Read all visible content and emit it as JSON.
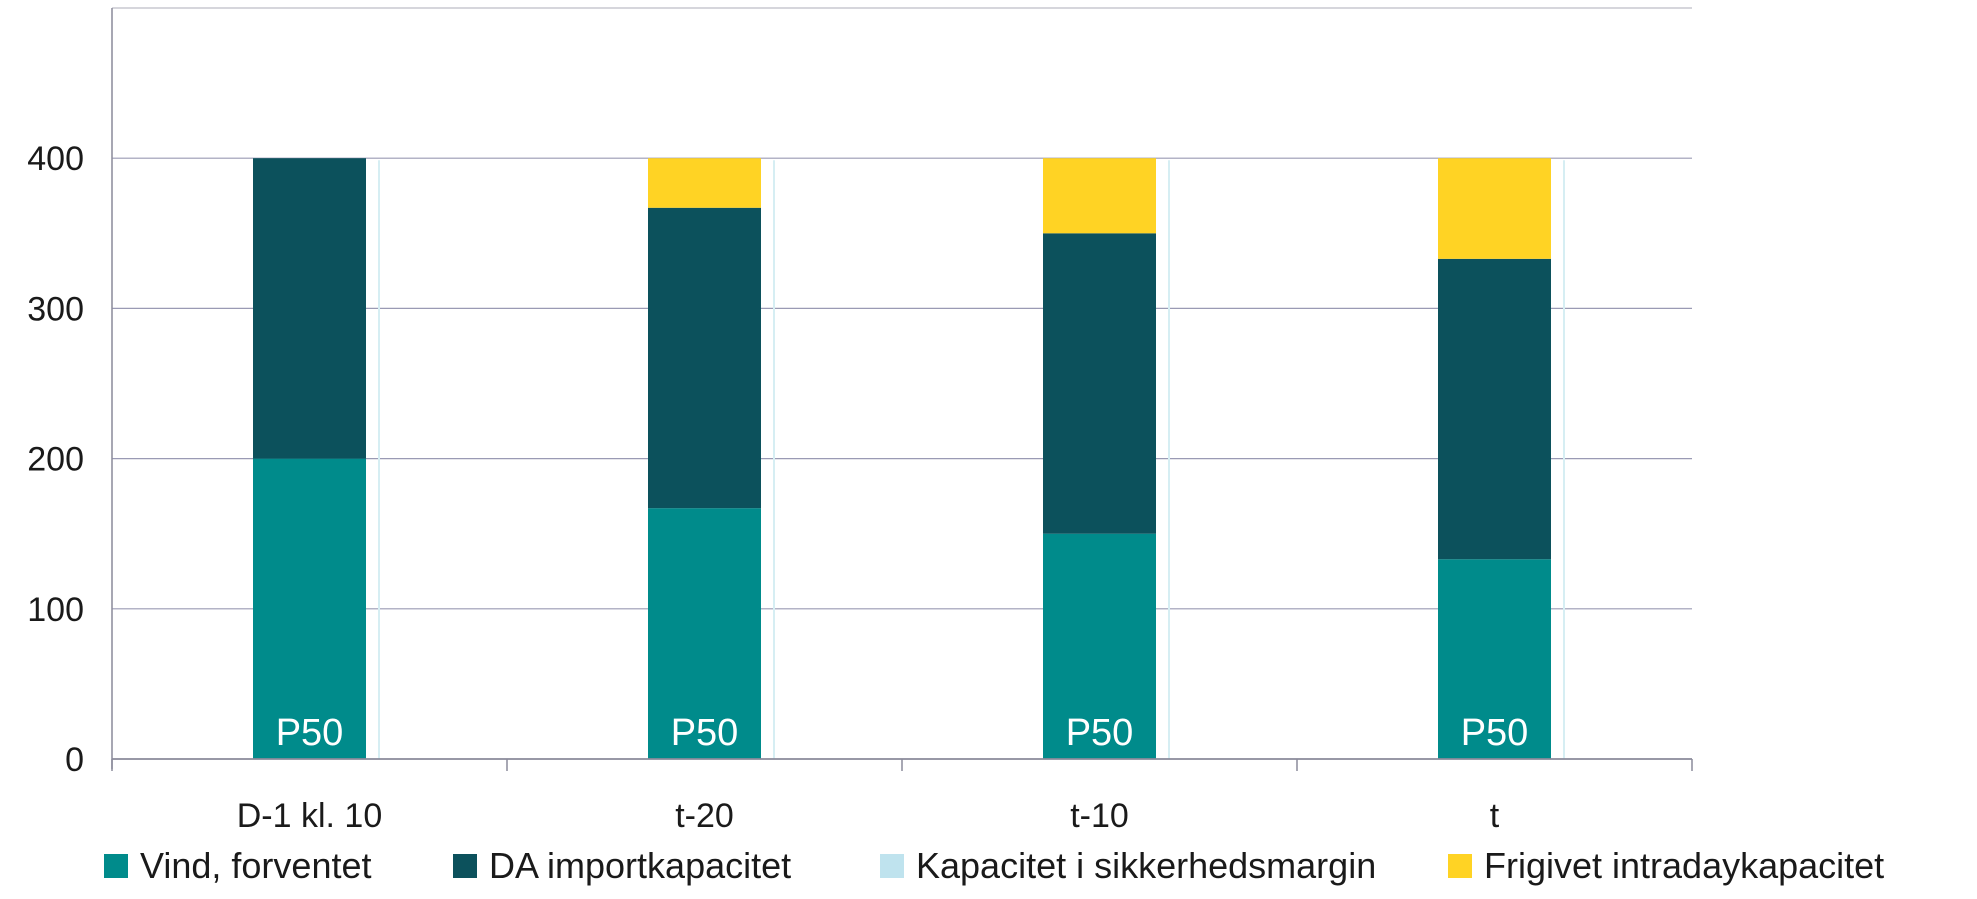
{
  "chart_data": {
    "type": "bar",
    "stacked": true,
    "categories": [
      "D-1 kl. 10",
      "t-20",
      "t-10",
      "t"
    ],
    "series": [
      {
        "name": "Vind, forventet",
        "values": [
          200,
          167,
          150,
          133
        ],
        "color": "#008B8B"
      },
      {
        "name": "DA importkapacitet",
        "values": [
          200,
          200,
          200,
          200
        ],
        "color": "#0C515C"
      },
      {
        "name": "Kapacitet i sikkerhedsmargin",
        "values": [
          0,
          0,
          0,
          0
        ],
        "color": "#BFE3EE"
      },
      {
        "name": "Frigivet intradaykapacitet",
        "values": [
          0,
          33,
          50,
          67
        ],
        "color": "#FFD324"
      }
    ],
    "bar_labels": [
      "P50",
      "P50",
      "P50",
      "P50"
    ],
    "yticks": [
      0,
      100,
      200,
      300,
      400
    ],
    "ylim": [
      0,
      500
    ],
    "grid": true,
    "legend": "bottom",
    "title": "",
    "xlabel": "",
    "ylabel": ""
  }
}
